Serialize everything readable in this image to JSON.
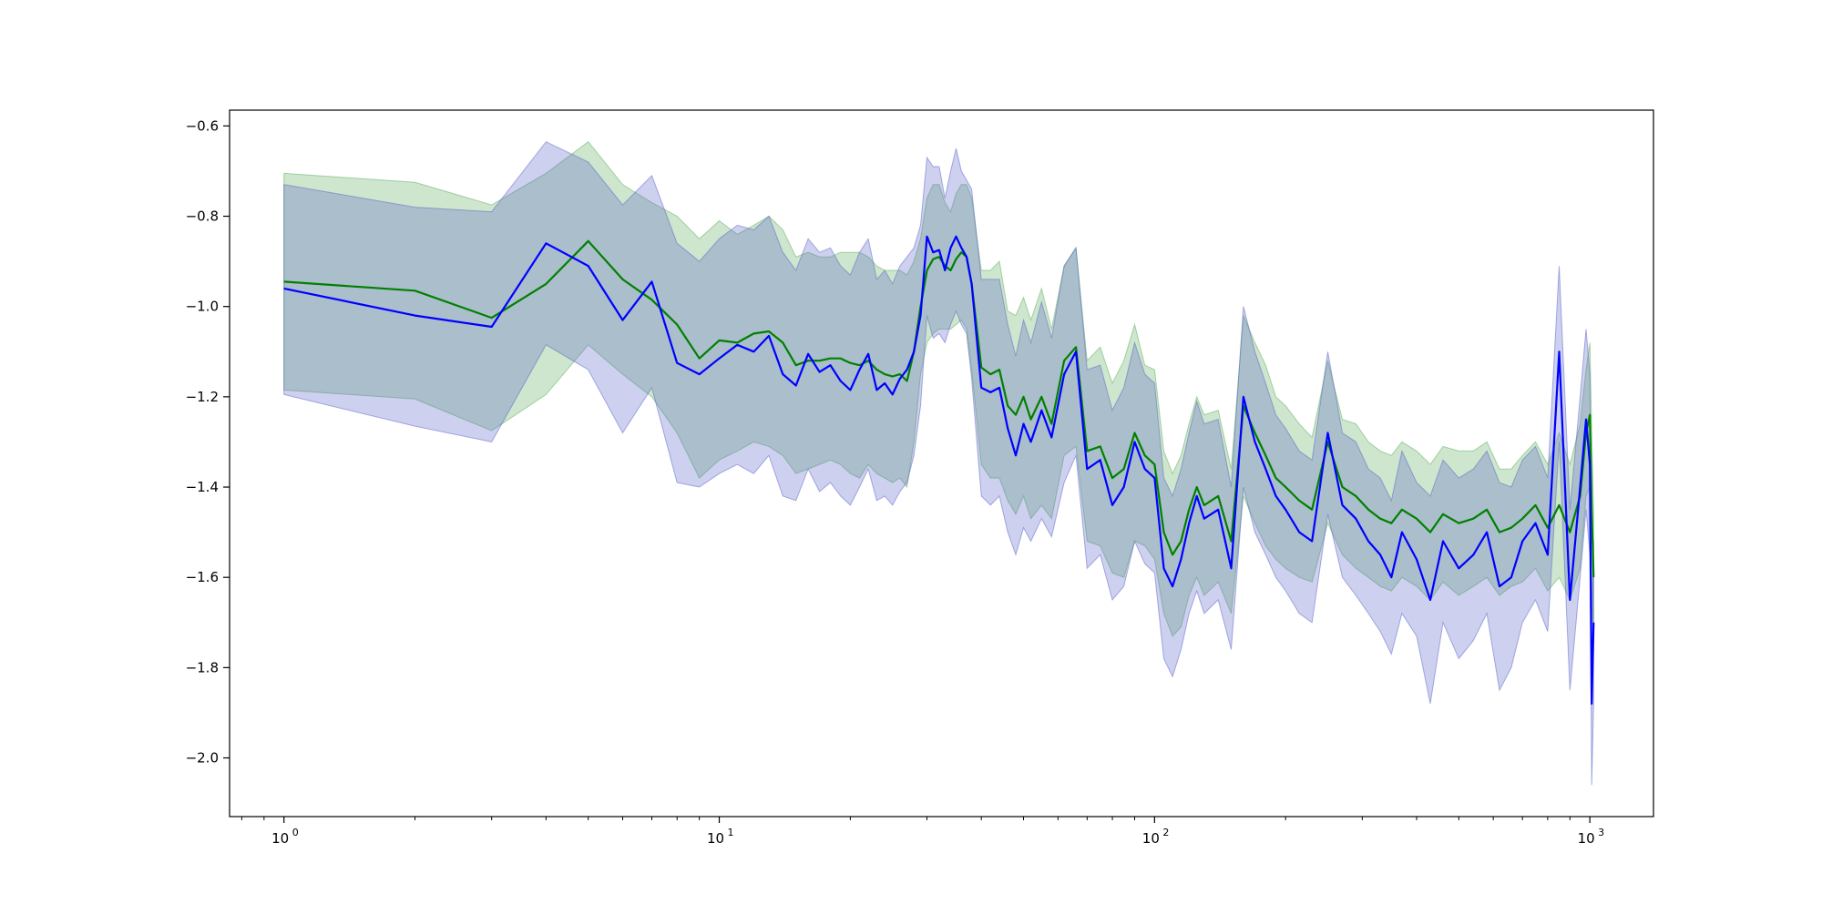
{
  "chart_data": {
    "type": "line",
    "title": "",
    "xlabel": "",
    "ylabel": "",
    "x_scale": "log",
    "xlim": [
      0.75,
      1400
    ],
    "ylim": [
      -2.13,
      -0.565
    ],
    "grid": false,
    "legend": null,
    "x_ticks": [
      {
        "base": "10",
        "exp": "0",
        "value": 1
      },
      {
        "base": "10",
        "exp": "1",
        "value": 10
      },
      {
        "base": "10",
        "exp": "2",
        "value": 100
      },
      {
        "base": "10",
        "exp": "3",
        "value": 1000
      }
    ],
    "y_ticks": [
      {
        "label": "−0.6",
        "value": -0.6
      },
      {
        "label": "−0.8",
        "value": -0.8
      },
      {
        "label": "−1.0",
        "value": -1.0
      },
      {
        "label": "−1.2",
        "value": -1.2
      },
      {
        "label": "−1.4",
        "value": -1.4
      },
      {
        "label": "−1.6",
        "value": -1.6
      },
      {
        "label": "−1.8",
        "value": -1.8
      },
      {
        "label": "−2.0",
        "value": -2.0
      }
    ],
    "series": [
      {
        "color": "#008000",
        "band_color": "#5aad5a",
        "band_opacity": 0.3,
        "x": [
          1,
          2,
          3,
          4,
          5,
          6,
          7,
          8,
          9,
          10,
          11,
          12,
          13,
          14,
          15,
          16,
          17,
          18,
          19,
          20,
          21,
          22,
          23,
          24,
          25,
          26,
          27,
          28,
          29,
          30,
          31,
          32,
          33,
          34,
          35,
          36,
          37,
          38,
          40,
          42,
          44,
          46,
          48,
          50,
          52,
          55,
          58,
          62,
          66,
          70,
          75,
          80,
          85,
          90,
          95,
          100,
          105,
          110,
          115,
          120,
          125,
          130,
          140,
          150,
          160,
          170,
          180,
          190,
          200,
          215,
          230,
          250,
          270,
          290,
          310,
          330,
          350,
          370,
          400,
          430,
          460,
          500,
          540,
          580,
          620,
          660,
          700,
          750,
          800,
          850,
          900,
          950,
          980,
          1000,
          1010,
          1020
        ],
        "y": [
          -0.945,
          -0.965,
          -1.025,
          -0.95,
          -0.855,
          -0.94,
          -0.985,
          -1.04,
          -1.115,
          -1.075,
          -1.08,
          -1.06,
          -1.055,
          -1.08,
          -1.13,
          -1.12,
          -1.12,
          -1.115,
          -1.115,
          -1.125,
          -1.13,
          -1.12,
          -1.14,
          -1.15,
          -1.155,
          -1.15,
          -1.165,
          -1.1,
          -1.0,
          -0.92,
          -0.895,
          -0.89,
          -0.91,
          -0.92,
          -0.895,
          -0.88,
          -0.89,
          -0.95,
          -1.135,
          -1.15,
          -1.14,
          -1.22,
          -1.24,
          -1.2,
          -1.25,
          -1.2,
          -1.26,
          -1.12,
          -1.09,
          -1.32,
          -1.31,
          -1.38,
          -1.36,
          -1.28,
          -1.33,
          -1.35,
          -1.5,
          -1.55,
          -1.52,
          -1.45,
          -1.4,
          -1.44,
          -1.42,
          -1.52,
          -1.22,
          -1.28,
          -1.33,
          -1.38,
          -1.4,
          -1.43,
          -1.45,
          -1.3,
          -1.4,
          -1.42,
          -1.45,
          -1.47,
          -1.48,
          -1.45,
          -1.47,
          -1.5,
          -1.46,
          -1.48,
          -1.47,
          -1.45,
          -1.5,
          -1.49,
          -1.47,
          -1.44,
          -1.49,
          -1.44,
          -1.5,
          -1.42,
          -1.28,
          -1.24,
          -1.45,
          -1.6
        ],
        "lower": [
          -1.185,
          -1.205,
          -1.275,
          -1.195,
          -1.085,
          -1.15,
          -1.2,
          -1.28,
          -1.38,
          -1.34,
          -1.32,
          -1.3,
          -1.31,
          -1.33,
          -1.37,
          -1.36,
          -1.35,
          -1.34,
          -1.35,
          -1.37,
          -1.38,
          -1.35,
          -1.37,
          -1.38,
          -1.39,
          -1.38,
          -1.4,
          -1.3,
          -1.15,
          -1.08,
          -1.06,
          -1.05,
          -1.05,
          -1.05,
          -1.04,
          -1.03,
          -1.05,
          -1.14,
          -1.35,
          -1.38,
          -1.38,
          -1.43,
          -1.46,
          -1.42,
          -1.47,
          -1.44,
          -1.47,
          -1.33,
          -1.31,
          -1.52,
          -1.53,
          -1.59,
          -1.6,
          -1.52,
          -1.53,
          -1.56,
          -1.68,
          -1.73,
          -1.71,
          -1.64,
          -1.6,
          -1.64,
          -1.61,
          -1.68,
          -1.42,
          -1.48,
          -1.53,
          -1.56,
          -1.58,
          -1.6,
          -1.61,
          -1.48,
          -1.55,
          -1.58,
          -1.6,
          -1.62,
          -1.63,
          -1.6,
          -1.62,
          -1.65,
          -1.61,
          -1.64,
          -1.62,
          -1.6,
          -1.64,
          -1.62,
          -1.61,
          -1.58,
          -1.63,
          -1.6,
          -1.65,
          -1.58,
          -1.42,
          -1.4,
          -1.62,
          -1.75
        ],
        "upper": [
          -0.705,
          -0.725,
          -0.775,
          -0.705,
          -0.635,
          -0.73,
          -0.77,
          -0.8,
          -0.85,
          -0.81,
          -0.84,
          -0.82,
          -0.8,
          -0.83,
          -0.89,
          -0.88,
          -0.89,
          -0.89,
          -0.88,
          -0.88,
          -0.88,
          -0.89,
          -0.91,
          -0.92,
          -0.92,
          -0.92,
          -0.93,
          -0.9,
          -0.85,
          -0.76,
          -0.73,
          -0.73,
          -0.77,
          -0.79,
          -0.75,
          -0.73,
          -0.73,
          -0.76,
          -0.92,
          -0.92,
          -0.9,
          -1.01,
          -1.02,
          -0.98,
          -1.03,
          -0.96,
          -1.05,
          -0.91,
          -0.87,
          -1.12,
          -1.09,
          -1.17,
          -1.12,
          -1.04,
          -1.13,
          -1.14,
          -1.32,
          -1.37,
          -1.33,
          -1.26,
          -1.2,
          -1.24,
          -1.23,
          -1.36,
          -1.02,
          -1.08,
          -1.13,
          -1.2,
          -1.22,
          -1.26,
          -1.29,
          -1.12,
          -1.25,
          -1.26,
          -1.3,
          -1.32,
          -1.33,
          -1.3,
          -1.32,
          -1.35,
          -1.31,
          -1.32,
          -1.32,
          -1.3,
          -1.36,
          -1.36,
          -1.33,
          -1.3,
          -1.35,
          -1.28,
          -1.35,
          -1.26,
          -1.14,
          -1.08,
          -1.28,
          -1.45
        ]
      },
      {
        "color": "#0000ff",
        "band_color": "#5a64c8",
        "band_opacity": 0.3,
        "x": [
          1,
          2,
          3,
          4,
          5,
          6,
          7,
          8,
          9,
          10,
          11,
          12,
          13,
          14,
          15,
          16,
          17,
          18,
          19,
          20,
          21,
          22,
          23,
          24,
          25,
          26,
          27,
          28,
          29,
          30,
          31,
          32,
          33,
          34,
          35,
          36,
          37,
          38,
          40,
          42,
          44,
          46,
          48,
          50,
          52,
          55,
          58,
          62,
          66,
          70,
          75,
          80,
          85,
          90,
          95,
          100,
          105,
          110,
          115,
          120,
          125,
          130,
          140,
          150,
          160,
          170,
          180,
          190,
          200,
          215,
          230,
          250,
          270,
          290,
          310,
          330,
          350,
          370,
          400,
          430,
          460,
          500,
          540,
          580,
          620,
          660,
          700,
          750,
          800,
          850,
          900,
          950,
          980,
          1000,
          1010,
          1020
        ],
        "y": [
          -0.96,
          -1.02,
          -1.045,
          -0.86,
          -0.91,
          -1.03,
          -0.945,
          -1.125,
          -1.15,
          -1.115,
          -1.085,
          -1.1,
          -1.065,
          -1.15,
          -1.175,
          -1.105,
          -1.145,
          -1.13,
          -1.165,
          -1.185,
          -1.14,
          -1.105,
          -1.185,
          -1.17,
          -1.195,
          -1.16,
          -1.14,
          -1.1,
          -1.02,
          -0.845,
          -0.88,
          -0.875,
          -0.92,
          -0.87,
          -0.845,
          -0.87,
          -0.89,
          -0.95,
          -1.18,
          -1.19,
          -1.18,
          -1.27,
          -1.33,
          -1.26,
          -1.3,
          -1.23,
          -1.29,
          -1.15,
          -1.1,
          -1.36,
          -1.34,
          -1.44,
          -1.4,
          -1.3,
          -1.36,
          -1.38,
          -1.58,
          -1.62,
          -1.56,
          -1.48,
          -1.42,
          -1.47,
          -1.45,
          -1.58,
          -1.2,
          -1.3,
          -1.36,
          -1.42,
          -1.45,
          -1.5,
          -1.52,
          -1.28,
          -1.44,
          -1.47,
          -1.52,
          -1.55,
          -1.6,
          -1.5,
          -1.56,
          -1.65,
          -1.52,
          -1.58,
          -1.55,
          -1.5,
          -1.62,
          -1.6,
          -1.52,
          -1.48,
          -1.55,
          -1.1,
          -1.65,
          -1.4,
          -1.25,
          -1.35,
          -1.88,
          -1.7
        ],
        "lower": [
          -1.195,
          -1.265,
          -1.3,
          -1.085,
          -1.14,
          -1.28,
          -1.18,
          -1.39,
          -1.4,
          -1.37,
          -1.35,
          -1.37,
          -1.33,
          -1.42,
          -1.43,
          -1.36,
          -1.41,
          -1.39,
          -1.42,
          -1.44,
          -1.4,
          -1.36,
          -1.43,
          -1.42,
          -1.44,
          -1.41,
          -1.39,
          -1.33,
          -1.22,
          -1.02,
          -1.07,
          -1.06,
          -1.08,
          -1.04,
          -1.01,
          -1.04,
          -1.06,
          -1.16,
          -1.42,
          -1.44,
          -1.42,
          -1.5,
          -1.55,
          -1.49,
          -1.52,
          -1.47,
          -1.51,
          -1.39,
          -1.33,
          -1.58,
          -1.55,
          -1.65,
          -1.62,
          -1.52,
          -1.57,
          -1.59,
          -1.78,
          -1.82,
          -1.76,
          -1.68,
          -1.63,
          -1.68,
          -1.65,
          -1.76,
          -1.4,
          -1.5,
          -1.55,
          -1.6,
          -1.63,
          -1.68,
          -1.7,
          -1.46,
          -1.6,
          -1.64,
          -1.68,
          -1.72,
          -1.77,
          -1.68,
          -1.73,
          -1.88,
          -1.7,
          -1.78,
          -1.74,
          -1.68,
          -1.85,
          -1.8,
          -1.7,
          -1.65,
          -1.72,
          -1.3,
          -1.85,
          -1.6,
          -1.45,
          -1.55,
          -2.06,
          -1.88
        ],
        "upper": [
          -0.73,
          -0.78,
          -0.79,
          -0.635,
          -0.68,
          -0.775,
          -0.71,
          -0.86,
          -0.9,
          -0.85,
          -0.82,
          -0.83,
          -0.8,
          -0.88,
          -0.92,
          -0.85,
          -0.88,
          -0.87,
          -0.91,
          -0.93,
          -0.88,
          -0.85,
          -0.94,
          -0.92,
          -0.95,
          -0.91,
          -0.89,
          -0.87,
          -0.82,
          -0.67,
          -0.69,
          -0.69,
          -0.76,
          -0.7,
          -0.65,
          -0.7,
          -0.72,
          -0.74,
          -0.94,
          -0.94,
          -0.94,
          -1.04,
          -1.11,
          -1.03,
          -1.08,
          -0.99,
          -1.07,
          -0.91,
          -0.87,
          -1.14,
          -1.13,
          -1.23,
          -1.18,
          -1.08,
          -1.15,
          -1.17,
          -1.38,
          -1.42,
          -1.36,
          -1.28,
          -1.21,
          -1.26,
          -1.25,
          -1.4,
          -1.0,
          -1.1,
          -1.17,
          -1.24,
          -1.27,
          -1.32,
          -1.34,
          -1.1,
          -1.28,
          -1.3,
          -1.36,
          -1.38,
          -1.43,
          -1.32,
          -1.39,
          -1.42,
          -1.34,
          -1.38,
          -1.36,
          -1.32,
          -1.39,
          -1.4,
          -1.34,
          -1.31,
          -1.38,
          -0.91,
          -1.45,
          -1.2,
          -1.05,
          -1.15,
          -1.7,
          -1.52
        ]
      }
    ]
  }
}
